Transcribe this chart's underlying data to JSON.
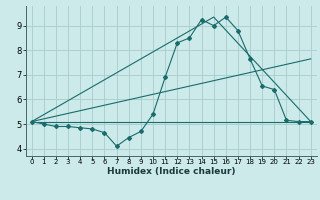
{
  "xlabel": "Humidex (Indice chaleur)",
  "xlim": [
    -0.5,
    23.5
  ],
  "ylim": [
    3.7,
    9.8
  ],
  "xticks": [
    0,
    1,
    2,
    3,
    4,
    5,
    6,
    7,
    8,
    9,
    10,
    11,
    12,
    13,
    14,
    15,
    16,
    17,
    18,
    19,
    20,
    21,
    22,
    23
  ],
  "yticks": [
    4,
    5,
    6,
    7,
    8,
    9
  ],
  "bg_color": "#cceaea",
  "grid_color": "#aacccc",
  "line_color": "#1a6b6b",
  "line1_x": [
    0,
    1,
    2,
    3,
    4,
    5,
    6,
    7,
    8,
    9,
    10,
    11,
    12,
    13,
    14,
    15,
    16,
    17,
    18,
    19,
    20,
    21,
    22,
    23
  ],
  "line1_y": [
    5.1,
    5.0,
    4.9,
    4.9,
    4.85,
    4.8,
    4.65,
    4.1,
    4.45,
    4.7,
    5.4,
    6.9,
    8.3,
    8.5,
    9.25,
    9.0,
    9.35,
    8.8,
    7.65,
    6.55,
    6.4,
    5.15,
    5.1,
    5.1
  ],
  "line2_x": [
    0,
    23
  ],
  "line2_y": [
    5.1,
    5.1
  ],
  "line3_x": [
    0,
    15,
    23
  ],
  "line3_y": [
    5.1,
    9.35,
    5.1
  ],
  "line4_x": [
    0,
    23
  ],
  "line4_y": [
    5.1,
    7.65
  ]
}
